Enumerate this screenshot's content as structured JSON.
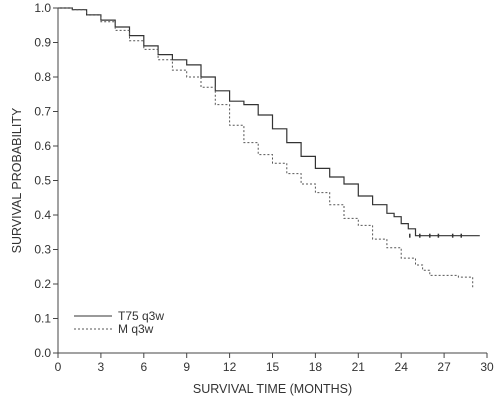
{
  "chart_data": {
    "type": "line",
    "xlabel": "SURVIVAL TIME (MONTHS)",
    "ylabel": "SURVIVAL PROBABILITY",
    "xlim": [
      0,
      30
    ],
    "ylim": [
      0,
      1.0
    ],
    "x_ticks": [
      0,
      3,
      6,
      9,
      12,
      15,
      18,
      21,
      24,
      27,
      30
    ],
    "y_ticks": [
      0.0,
      0.1,
      0.2,
      0.3,
      0.4,
      0.5,
      0.6,
      0.7,
      0.8,
      0.9,
      1.0
    ],
    "y_tick_labels": [
      "0.0",
      "0.1",
      "0.2",
      "0.3",
      "0.4",
      "0.5",
      "0.6",
      "0.7",
      "0.8",
      "0.9",
      "1.0"
    ],
    "x_tick_labels": [
      "0",
      "3",
      "6",
      "9",
      "12",
      "15",
      "18",
      "21",
      "24",
      "27",
      "30"
    ],
    "grid": false,
    "legend_position": "bottom-left",
    "series": [
      {
        "name": "T75 q3w",
        "line_style": "solid",
        "color": "#333333",
        "points": [
          [
            0,
            1.0
          ],
          [
            1,
            0.995
          ],
          [
            2,
            0.98
          ],
          [
            3,
            0.965
          ],
          [
            4,
            0.945
          ],
          [
            5,
            0.92
          ],
          [
            6,
            0.89
          ],
          [
            7,
            0.865
          ],
          [
            8,
            0.85
          ],
          [
            9,
            0.835
          ],
          [
            10,
            0.8
          ],
          [
            11,
            0.76
          ],
          [
            12,
            0.73
          ],
          [
            13,
            0.72
          ],
          [
            14,
            0.69
          ],
          [
            15,
            0.65
          ],
          [
            16,
            0.61
          ],
          [
            17,
            0.57
          ],
          [
            18,
            0.535
          ],
          [
            19,
            0.51
          ],
          [
            20,
            0.49
          ],
          [
            21,
            0.455
          ],
          [
            22,
            0.43
          ],
          [
            23,
            0.405
          ],
          [
            23.5,
            0.395
          ],
          [
            24,
            0.375
          ],
          [
            24.5,
            0.36
          ],
          [
            25,
            0.34
          ],
          [
            26,
            0.34
          ],
          [
            27,
            0.34
          ],
          [
            29.5,
            0.34
          ]
        ]
      },
      {
        "name": "M q3w",
        "line_style": "dashed",
        "color": "#555555",
        "points": [
          [
            0,
            1.0
          ],
          [
            1,
            0.995
          ],
          [
            2,
            0.98
          ],
          [
            3,
            0.96
          ],
          [
            4,
            0.935
          ],
          [
            5,
            0.905
          ],
          [
            6,
            0.88
          ],
          [
            7,
            0.85
          ],
          [
            8,
            0.82
          ],
          [
            9,
            0.8
          ],
          [
            10,
            0.77
          ],
          [
            11,
            0.72
          ],
          [
            12,
            0.66
          ],
          [
            13,
            0.61
          ],
          [
            14,
            0.575
          ],
          [
            15,
            0.55
          ],
          [
            16,
            0.52
          ],
          [
            17,
            0.49
          ],
          [
            18,
            0.465
          ],
          [
            19,
            0.43
          ],
          [
            20,
            0.39
          ],
          [
            21,
            0.37
          ],
          [
            22,
            0.33
          ],
          [
            23,
            0.305
          ],
          [
            24,
            0.275
          ],
          [
            25,
            0.255
          ],
          [
            25.5,
            0.24
          ],
          [
            26,
            0.225
          ],
          [
            27,
            0.225
          ],
          [
            28,
            0.22
          ],
          [
            29,
            0.22
          ],
          [
            29,
            0.185
          ]
        ]
      }
    ]
  }
}
